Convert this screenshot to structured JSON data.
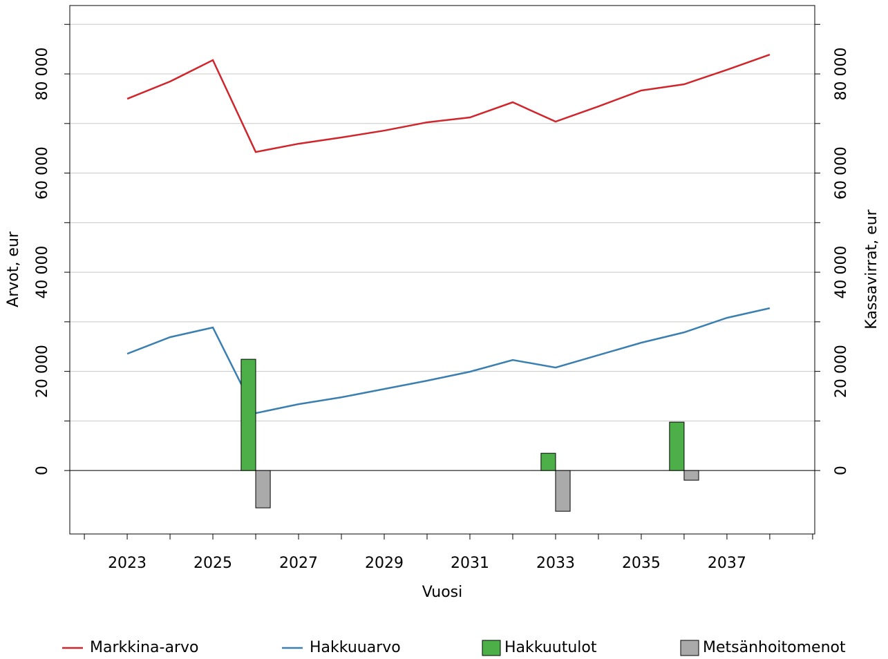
{
  "chart_data": {
    "type": "line",
    "x_label": "Vuosi",
    "y_label": "Arvot, eur",
    "y2_label": "Kassavirrat, eur",
    "x": [
      2023,
      2024,
      2025,
      2026,
      2027,
      2028,
      2029,
      2030,
      2031,
      2032,
      2033,
      2034,
      2035,
      2036,
      2037,
      2038
    ],
    "xlim": [
      2021.66,
      2039.05
    ],
    "xticks": [
      2023,
      2025,
      2027,
      2029,
      2031,
      2033,
      2035,
      2037
    ],
    "xminor": [
      2022,
      2023,
      2024,
      2025,
      2026,
      2027,
      2028,
      2029,
      2030,
      2031,
      2032,
      2033,
      2034,
      2035,
      2036,
      2037,
      2038,
      2039
    ],
    "ylim": [
      -12800,
      93800
    ],
    "yticks": [
      {
        "value": 0,
        "label": "0"
      },
      {
        "value": 20000,
        "label": "20 000"
      },
      {
        "value": 40000,
        "label": "40 000"
      },
      {
        "value": 60000,
        "label": "60 000"
      },
      {
        "value": 80000,
        "label": "80 000"
      }
    ],
    "yminor": [
      10000,
      30000,
      50000,
      70000,
      90000
    ],
    "y2lim": [
      -12800,
      93800
    ],
    "y2ticks": [
      {
        "value": 0,
        "label": "0"
      },
      {
        "value": 20000,
        "label": "20 000"
      },
      {
        "value": 40000,
        "label": "40 000"
      },
      {
        "value": 60000,
        "label": "60 000"
      },
      {
        "value": 80000,
        "label": "80 000"
      }
    ],
    "grid": true,
    "legend": "bottom",
    "series": [
      {
        "name": "Markkina-arvo",
        "type": "line",
        "color": "#d0252b",
        "values": [
          74980,
          78470,
          82790,
          64250,
          65920,
          67180,
          68570,
          70240,
          71220,
          74290,
          70380,
          73450,
          76660,
          77910,
          80840,
          83900
        ]
      },
      {
        "name": "Hakkuuarvo",
        "type": "line",
        "color": "#3a7fb0",
        "values": [
          23550,
          26900,
          28850,
          11570,
          13380,
          14770,
          16450,
          18120,
          19930,
          22300,
          20770,
          23280,
          25780,
          27870,
          30800,
          32750
        ]
      },
      {
        "name": "Hakkuutulot",
        "type": "bar",
        "axis": "y2",
        "color": "#4caf48",
        "values": [
          null,
          null,
          null,
          22440,
          null,
          null,
          null,
          null,
          null,
          null,
          3480,
          null,
          null,
          9760,
          null,
          null
        ]
      },
      {
        "name": "Metsänhoitomenot",
        "type": "bar",
        "axis": "y2",
        "color": "#aaaaaa",
        "values": [
          null,
          null,
          null,
          -7530,
          null,
          null,
          null,
          null,
          null,
          null,
          -8220,
          null,
          null,
          -1950,
          null,
          null
        ]
      }
    ]
  }
}
